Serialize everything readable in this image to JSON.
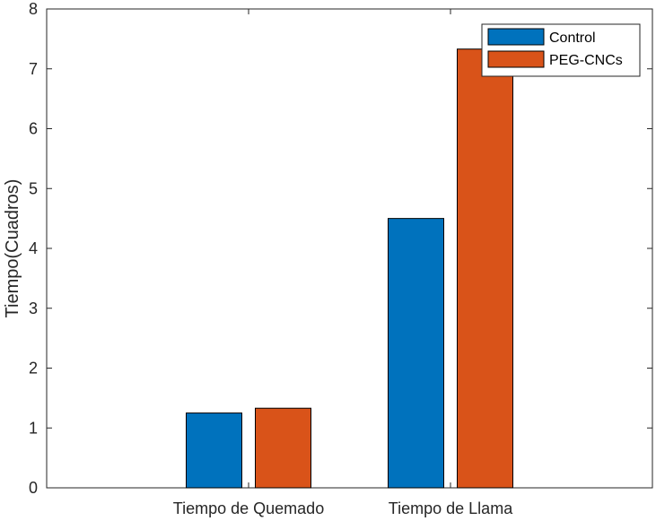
{
  "chart_data": {
    "type": "bar",
    "title": "",
    "xlabel": "",
    "ylabel": "Tiempo(Cuadros)",
    "categories": [
      "Tiempo de Quemado",
      "Tiempo de Llama"
    ],
    "series": [
      {
        "name": "Control",
        "color": "#0072BD",
        "values": [
          1.25,
          4.5
        ]
      },
      {
        "name": "PEG-CNCs",
        "color": "#D95319",
        "values": [
          1.33,
          7.33
        ]
      }
    ],
    "ylim": [
      0,
      8
    ],
    "yticks": [
      0,
      1,
      2,
      3,
      4,
      5,
      6,
      7,
      8
    ],
    "grid": false,
    "legend_position": "top-right"
  }
}
